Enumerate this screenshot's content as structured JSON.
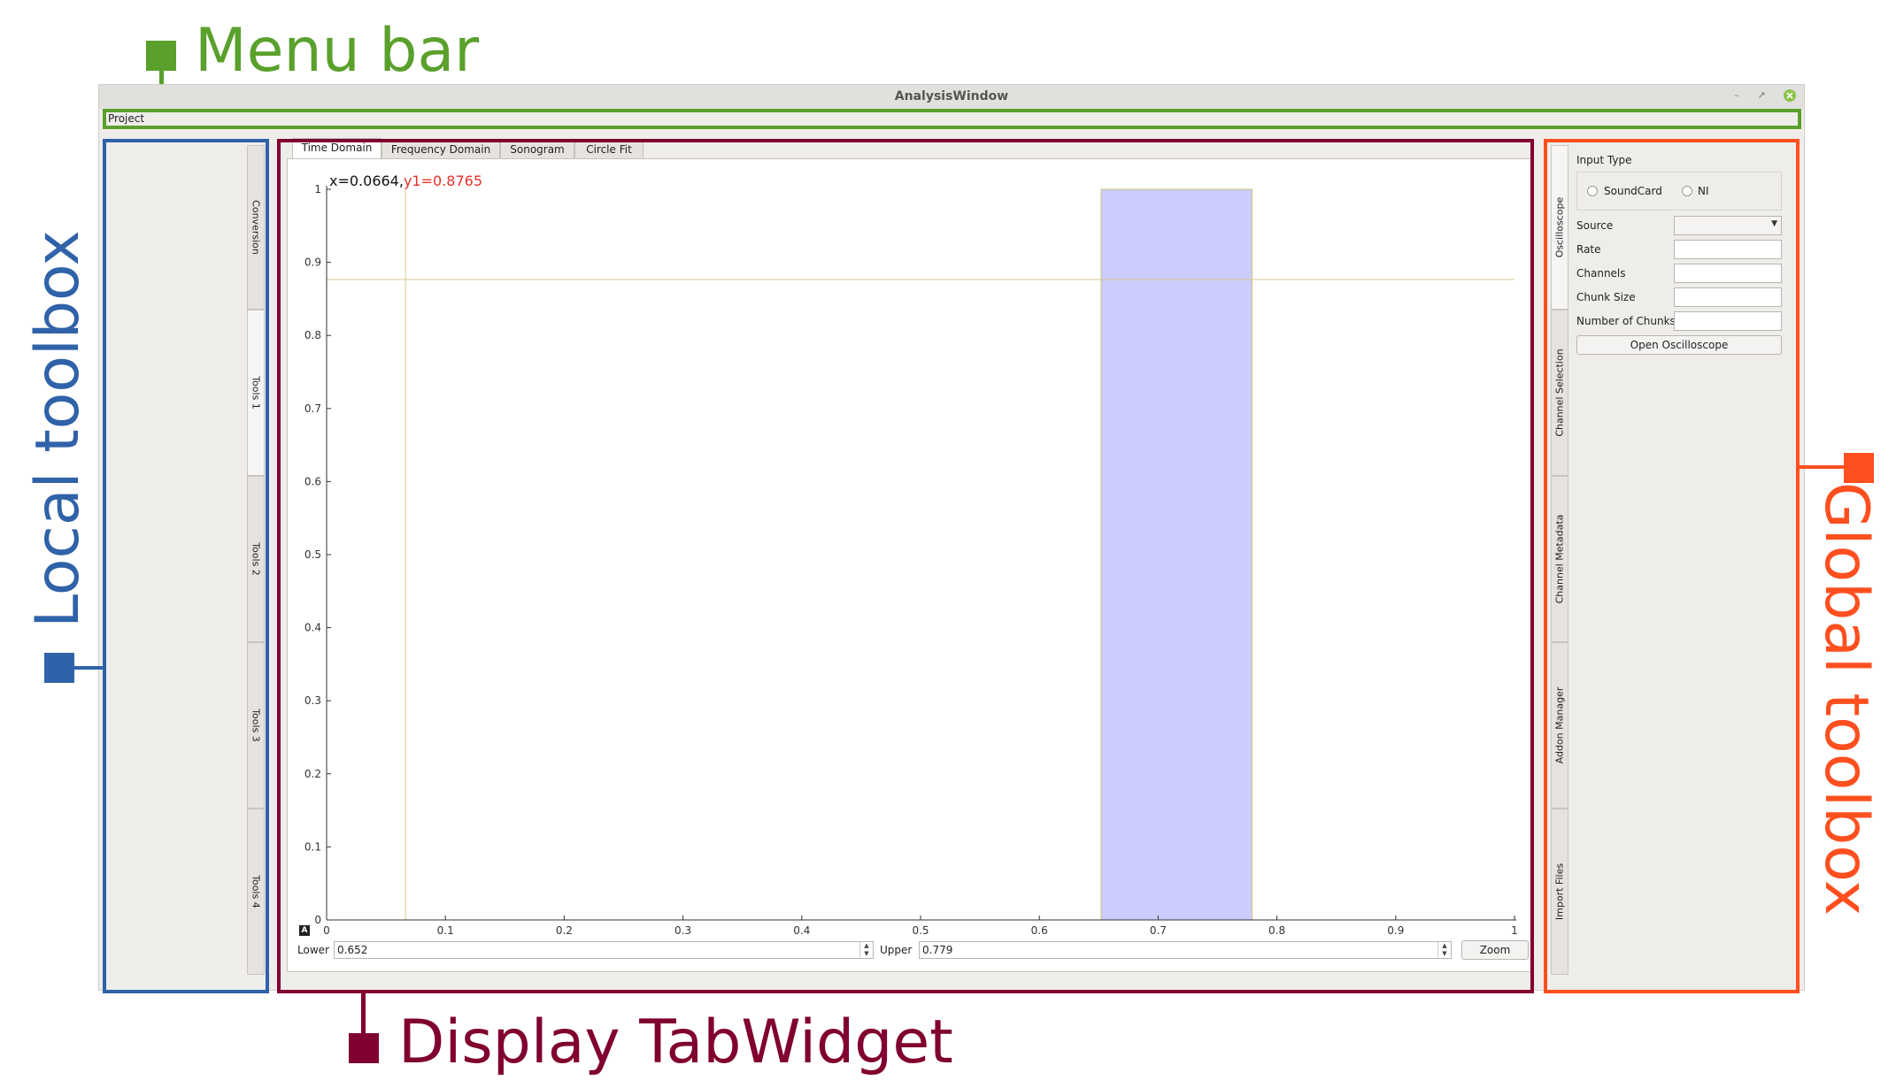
{
  "annotations": {
    "menu_bar": "Menu bar",
    "local_toolbox": "Local toolbox",
    "display_tabwidget": "Display TabWidget",
    "global_toolbox": "Global toolbox",
    "colors": {
      "menu_bar": "#5aa02c",
      "local_toolbox": "#2f62a8",
      "display_tabwidget": "#800030",
      "global_toolbox": "#ff4f1f"
    }
  },
  "window": {
    "title": "AnalysisWindow",
    "minimize_icon": "minimize-icon",
    "restore_icon": "restore-icon",
    "close_icon": "close-icon"
  },
  "menubar": {
    "items": [
      "Project"
    ]
  },
  "local_toolbox": {
    "tabs": [
      "Conversion",
      "Tools 1",
      "Tools 2",
      "Tools 3",
      "Tools 4"
    ],
    "active_tab": "Tools 1"
  },
  "display": {
    "tabs": [
      "Time Domain",
      "Frequency Domain",
      "Sonogram",
      "Circle Fit"
    ],
    "active_tab": "Time Domain",
    "cursor_readout": {
      "x_part": "x=0.0664,",
      "y_part": "y1=0.8765"
    },
    "auto_range_icon": "A",
    "lower_label": "Lower",
    "lower_value": "0.652",
    "upper_label": "Upper",
    "upper_value": "0.779",
    "zoom_label": "Zoom"
  },
  "chart_data": {
    "type": "line",
    "xlim": [
      0,
      1
    ],
    "ylim": [
      0,
      1
    ],
    "x_ticks": [
      "0",
      "0.1",
      "0.2",
      "0.3",
      "0.4",
      "0.5",
      "0.6",
      "0.7",
      "0.8",
      "0.9",
      "1"
    ],
    "y_ticks": [
      "0",
      "0.1",
      "0.2",
      "0.3",
      "0.4",
      "0.5",
      "0.6",
      "0.7",
      "0.8",
      "0.9",
      "1"
    ],
    "cursor": {
      "x": 0.0664,
      "y": 0.8765
    },
    "selected_region": {
      "lower": 0.652,
      "upper": 0.779
    },
    "colors": {
      "cursor": "#d7c98a",
      "region": "#ccccff",
      "readout_y": "#e8302a"
    },
    "grid": false
  },
  "global_toolbox": {
    "tabs": [
      "Oscilloscope",
      "Channel Selection",
      "Channel Metadata",
      "Addon Manager",
      "Import Files"
    ],
    "active_tab": "Oscilloscope",
    "input_type_label": "Input Type",
    "radio_soundcard": "SoundCard",
    "radio_ni": "NI",
    "source_label": "Source",
    "rate_label": "Rate",
    "channels_label": "Channels",
    "chunk_size_label": "Chunk Size",
    "number_of_chunks_label": "Number of Chunks",
    "open_button": "Open Oscilloscope"
  }
}
